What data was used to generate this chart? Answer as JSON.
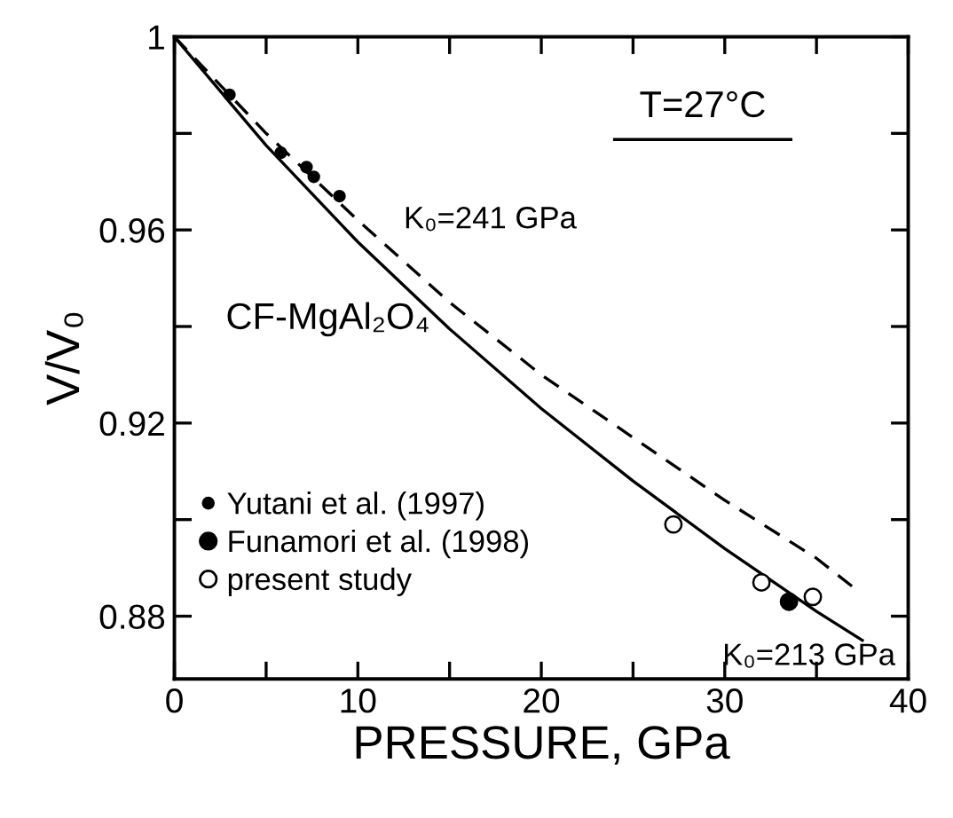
{
  "chart_data": {
    "type": "scatter",
    "xlabel": "PRESSURE, GPa",
    "ylabel": "V/V₀",
    "xlim": [
      0,
      40
    ],
    "ylim": [
      0.867,
      1
    ],
    "xticks": [
      0,
      {
        "value": 5,
        "label": null
      },
      10,
      {
        "value": 15,
        "label": null
      },
      20,
      {
        "value": 25,
        "label": null
      },
      30,
      {
        "value": 35,
        "label": null
      },
      40
    ],
    "yticks": [
      0.88,
      {
        "value": 0.9,
        "label": null
      },
      0.92,
      {
        "value": 0.94,
        "label": null
      },
      0.96,
      {
        "value": 0.98,
        "label": null
      },
      1
    ],
    "legend": "bottom left",
    "grid": false,
    "series": [
      {
        "name": "Yutani et al. (1997)",
        "type": "scatter",
        "marker": "circle",
        "color": "#000000",
        "x": [
          3.0,
          5.8,
          7.2,
          7.6,
          9.0
        ],
        "values": [
          0.988,
          0.976,
          0.973,
          0.971,
          0.967
        ]
      },
      {
        "name": "Funamori et al. (1998)",
        "type": "scatter",
        "marker": "circle",
        "color": "#000000",
        "x": [
          33.5
        ],
        "values": [
          0.883
        ]
      },
      {
        "name": "present study",
        "type": "scatter",
        "marker": "circle",
        "color": "#ffffff",
        "x": [
          27.2,
          32.0,
          34.8
        ],
        "values": [
          0.899,
          0.887,
          0.884
        ]
      },
      {
        "type": "line",
        "line_style": "solid",
        "marker": "none",
        "color": "#000000",
        "x": [
          0,
          5,
          10,
          15,
          20,
          25,
          30,
          35,
          37.5
        ],
        "values": [
          1,
          0.9775,
          0.9575,
          0.9395,
          0.923,
          0.908,
          0.894,
          0.881,
          0.875
        ]
      },
      {
        "type": "line",
        "line_style": "dashed",
        "marker": "none",
        "color": "#000000",
        "x": [
          0,
          5,
          10,
          15,
          20,
          25,
          30,
          35,
          37
        ],
        "values": [
          1,
          0.98,
          0.962,
          0.945,
          0.93,
          0.917,
          0.904,
          0.892,
          0.886
        ]
      }
    ],
    "annotations": [
      "T=27°C",
      {
        "text": "K₀=241 GPa",
        "x": 10,
        "y": 0.962
      },
      "CF-MgAl₂O₄",
      {
        "text": "K₀=213 GPa",
        "x": 35,
        "y": 0.881
      }
    ]
  }
}
